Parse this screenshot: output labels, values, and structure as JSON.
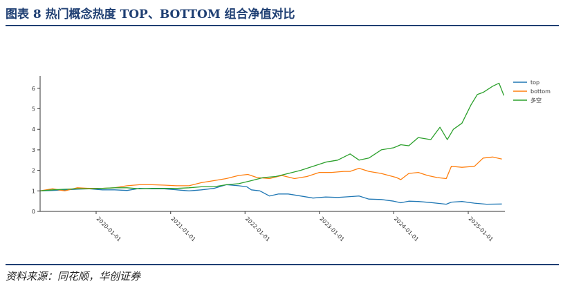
{
  "figure": {
    "title": "图表 8   热门概念热度 TOP、BOTTOM 组合净值对比",
    "source": "资料来源：同花顺，华创证券"
  },
  "chart_data": {
    "type": "line",
    "title": "",
    "xlabel": "",
    "ylabel": "",
    "ylim": [
      0,
      6.6
    ],
    "yticks": [
      0,
      1,
      2,
      3,
      4,
      5,
      6
    ],
    "xlim": [
      "2019-04-01",
      "2025-06-30"
    ],
    "xticks": [
      "2020-01-01",
      "2021-01-01",
      "2022-01-01",
      "2023-01-01",
      "2024-01-01",
      "2025-01-01"
    ],
    "legend_position": "top-right",
    "grid": false,
    "series": [
      {
        "name": "top",
        "color": "#1f77b4",
        "points": [
          [
            "2019-04-01",
            1.0
          ],
          [
            "2019-06-01",
            1.02
          ],
          [
            "2019-08-01",
            1.05
          ],
          [
            "2019-10-01",
            1.08
          ],
          [
            "2019-12-01",
            1.1
          ],
          [
            "2020-02-01",
            1.05
          ],
          [
            "2020-04-01",
            1.05
          ],
          [
            "2020-06-01",
            1.02
          ],
          [
            "2020-08-01",
            1.12
          ],
          [
            "2020-10-01",
            1.1
          ],
          [
            "2020-12-01",
            1.1
          ],
          [
            "2021-02-01",
            1.05
          ],
          [
            "2021-04-01",
            1.0
          ],
          [
            "2021-06-01",
            1.05
          ],
          [
            "2021-08-01",
            1.12
          ],
          [
            "2021-10-01",
            1.3
          ],
          [
            "2021-12-01",
            1.25
          ],
          [
            "2022-01-10",
            1.2
          ],
          [
            "2022-02-01",
            1.05
          ],
          [
            "2022-03-15",
            1.0
          ],
          [
            "2022-05-01",
            0.75
          ],
          [
            "2022-06-15",
            0.85
          ],
          [
            "2022-08-01",
            0.85
          ],
          [
            "2022-10-01",
            0.75
          ],
          [
            "2022-12-01",
            0.65
          ],
          [
            "2023-02-01",
            0.7
          ],
          [
            "2023-04-01",
            0.68
          ],
          [
            "2023-06-01",
            0.72
          ],
          [
            "2023-07-15",
            0.75
          ],
          [
            "2023-09-01",
            0.6
          ],
          [
            "2023-11-01",
            0.58
          ],
          [
            "2024-01-01",
            0.5
          ],
          [
            "2024-02-05",
            0.42
          ],
          [
            "2024-03-15",
            0.5
          ],
          [
            "2024-05-01",
            0.48
          ],
          [
            "2024-07-01",
            0.43
          ],
          [
            "2024-09-15",
            0.35
          ],
          [
            "2024-10-10",
            0.45
          ],
          [
            "2024-12-01",
            0.48
          ],
          [
            "2025-02-01",
            0.4
          ],
          [
            "2025-04-01",
            0.35
          ],
          [
            "2025-06-15",
            0.36
          ]
        ]
      },
      {
        "name": "bottom",
        "color": "#ff7f0e",
        "points": [
          [
            "2019-04-01",
            1.0
          ],
          [
            "2019-06-01",
            1.1
          ],
          [
            "2019-08-01",
            1.0
          ],
          [
            "2019-10-01",
            1.15
          ],
          [
            "2019-12-01",
            1.12
          ],
          [
            "2020-02-01",
            1.12
          ],
          [
            "2020-04-01",
            1.15
          ],
          [
            "2020-06-01",
            1.25
          ],
          [
            "2020-08-01",
            1.3
          ],
          [
            "2020-10-01",
            1.3
          ],
          [
            "2020-12-01",
            1.28
          ],
          [
            "2021-02-01",
            1.25
          ],
          [
            "2021-04-01",
            1.25
          ],
          [
            "2021-06-01",
            1.4
          ],
          [
            "2021-08-01",
            1.5
          ],
          [
            "2021-10-01",
            1.6
          ],
          [
            "2021-12-01",
            1.75
          ],
          [
            "2022-01-15",
            1.8
          ],
          [
            "2022-03-01",
            1.65
          ],
          [
            "2022-05-01",
            1.6
          ],
          [
            "2022-07-01",
            1.75
          ],
          [
            "2022-09-01",
            1.6
          ],
          [
            "2022-11-01",
            1.7
          ],
          [
            "2023-01-01",
            1.9
          ],
          [
            "2023-03-01",
            1.9
          ],
          [
            "2023-05-01",
            1.95
          ],
          [
            "2023-06-01",
            1.95
          ],
          [
            "2023-07-15",
            2.1
          ],
          [
            "2023-09-01",
            1.95
          ],
          [
            "2023-11-01",
            1.85
          ],
          [
            "2024-01-15",
            1.65
          ],
          [
            "2024-02-05",
            1.55
          ],
          [
            "2024-03-15",
            1.85
          ],
          [
            "2024-05-01",
            1.9
          ],
          [
            "2024-06-15",
            1.75
          ],
          [
            "2024-08-01",
            1.65
          ],
          [
            "2024-09-15",
            1.6
          ],
          [
            "2024-10-10",
            2.2
          ],
          [
            "2024-12-01",
            2.15
          ],
          [
            "2025-02-01",
            2.2
          ],
          [
            "2025-03-15",
            2.6
          ],
          [
            "2025-05-01",
            2.65
          ],
          [
            "2025-06-15",
            2.55
          ]
        ]
      },
      {
        "name": "多空",
        "color": "#2ca02c",
        "points": [
          [
            "2019-04-01",
            1.0
          ],
          [
            "2019-06-01",
            1.05
          ],
          [
            "2019-08-01",
            1.08
          ],
          [
            "2019-10-01",
            1.1
          ],
          [
            "2019-12-01",
            1.1
          ],
          [
            "2020-02-01",
            1.12
          ],
          [
            "2020-04-01",
            1.15
          ],
          [
            "2020-06-01",
            1.15
          ],
          [
            "2020-08-01",
            1.1
          ],
          [
            "2020-10-01",
            1.12
          ],
          [
            "2020-12-01",
            1.12
          ],
          [
            "2021-02-01",
            1.12
          ],
          [
            "2021-04-01",
            1.15
          ],
          [
            "2021-06-01",
            1.2
          ],
          [
            "2021-08-01",
            1.2
          ],
          [
            "2021-10-01",
            1.3
          ],
          [
            "2021-12-01",
            1.35
          ],
          [
            "2022-02-01",
            1.5
          ],
          [
            "2022-04-01",
            1.65
          ],
          [
            "2022-06-01",
            1.7
          ],
          [
            "2022-08-01",
            1.85
          ],
          [
            "2022-10-01",
            2.0
          ],
          [
            "2022-12-01",
            2.2
          ],
          [
            "2023-02-01",
            2.4
          ],
          [
            "2023-04-01",
            2.5
          ],
          [
            "2023-06-01",
            2.8
          ],
          [
            "2023-07-15",
            2.5
          ],
          [
            "2023-09-01",
            2.6
          ],
          [
            "2023-11-01",
            3.0
          ],
          [
            "2024-01-01",
            3.1
          ],
          [
            "2024-02-05",
            3.25
          ],
          [
            "2024-03-15",
            3.2
          ],
          [
            "2024-05-01",
            3.6
          ],
          [
            "2024-07-01",
            3.5
          ],
          [
            "2024-08-15",
            4.1
          ],
          [
            "2024-09-20",
            3.5
          ],
          [
            "2024-10-20",
            4.0
          ],
          [
            "2024-12-01",
            4.3
          ],
          [
            "2025-01-15",
            5.2
          ],
          [
            "2025-02-15",
            5.7
          ],
          [
            "2025-03-15",
            5.8
          ],
          [
            "2025-05-01",
            6.1
          ],
          [
            "2025-06-01",
            6.25
          ],
          [
            "2025-06-25",
            5.65
          ]
        ]
      }
    ]
  }
}
